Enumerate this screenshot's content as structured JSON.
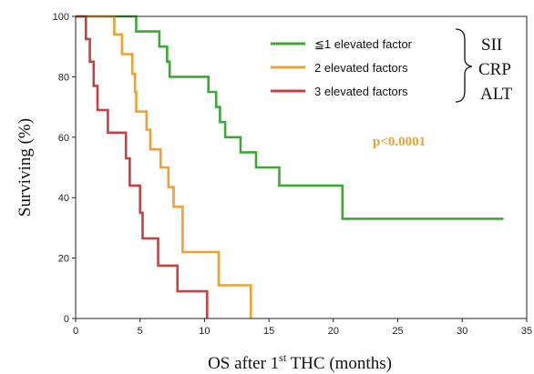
{
  "chart_data": {
    "type": "line",
    "step": true,
    "xlabel_main": "OS after 1",
    "xlabel_sup": "st",
    "xlabel_rest": " THC (months)",
    "ylabel": "Surviving (%)",
    "xlim": [
      0,
      35
    ],
    "ylim": [
      0,
      100
    ],
    "xticks": [
      "0",
      "5",
      "10",
      "15",
      "20",
      "25",
      "30",
      "35"
    ],
    "yticks": [
      "0",
      "20",
      "40",
      "60",
      "80",
      "100"
    ],
    "grid": false,
    "legend_position": "top-right",
    "series": [
      {
        "name": "≦1 elevated factor",
        "color": "#3aaa35",
        "points": [
          [
            0,
            100
          ],
          [
            4.7,
            100
          ],
          [
            4.7,
            95
          ],
          [
            6.5,
            95
          ],
          [
            6.5,
            90
          ],
          [
            7.1,
            90
          ],
          [
            7.1,
            85
          ],
          [
            7.3,
            85
          ],
          [
            7.3,
            80
          ],
          [
            10.3,
            80
          ],
          [
            10.3,
            75
          ],
          [
            10.9,
            75
          ],
          [
            10.9,
            70
          ],
          [
            11.2,
            70
          ],
          [
            11.2,
            65
          ],
          [
            11.6,
            65
          ],
          [
            11.6,
            60
          ],
          [
            12.8,
            60
          ],
          [
            12.8,
            55
          ],
          [
            14.0,
            55
          ],
          [
            14.0,
            50
          ],
          [
            15.8,
            50
          ],
          [
            15.8,
            44
          ],
          [
            20.7,
            44
          ],
          [
            20.7,
            33
          ],
          [
            33.2,
            33
          ]
        ]
      },
      {
        "name": "2 elevated factors",
        "color": "#f0a030",
        "points": [
          [
            0,
            100
          ],
          [
            3.0,
            100
          ],
          [
            3.0,
            94
          ],
          [
            3.6,
            94
          ],
          [
            3.6,
            87.5
          ],
          [
            4.4,
            87.5
          ],
          [
            4.4,
            81
          ],
          [
            4.6,
            81
          ],
          [
            4.6,
            75
          ],
          [
            4.7,
            75
          ],
          [
            4.7,
            68.5
          ],
          [
            5.5,
            68.5
          ],
          [
            5.5,
            62.5
          ],
          [
            5.8,
            62.5
          ],
          [
            5.8,
            56
          ],
          [
            6.6,
            56
          ],
          [
            6.6,
            50
          ],
          [
            7.2,
            50
          ],
          [
            7.2,
            43.5
          ],
          [
            7.6,
            43.5
          ],
          [
            7.6,
            37
          ],
          [
            8.3,
            37
          ],
          [
            8.3,
            22
          ],
          [
            11.1,
            22
          ],
          [
            11.1,
            11
          ],
          [
            13.6,
            11
          ],
          [
            13.6,
            0
          ]
        ]
      },
      {
        "name": "3 elevated factors",
        "color": "#c84040",
        "points": [
          [
            0,
            100
          ],
          [
            0.8,
            100
          ],
          [
            0.8,
            92.5
          ],
          [
            1.1,
            92.5
          ],
          [
            1.1,
            85
          ],
          [
            1.4,
            85
          ],
          [
            1.4,
            77
          ],
          [
            1.7,
            77
          ],
          [
            1.7,
            69
          ],
          [
            2.5,
            69
          ],
          [
            2.5,
            61.5
          ],
          [
            3.9,
            61.5
          ],
          [
            3.9,
            53
          ],
          [
            4.2,
            53
          ],
          [
            4.2,
            44
          ],
          [
            5.0,
            44
          ],
          [
            5.0,
            35
          ],
          [
            5.2,
            35
          ],
          [
            5.2,
            26.5
          ],
          [
            6.4,
            26.5
          ],
          [
            6.4,
            17.5
          ],
          [
            7.9,
            17.5
          ],
          [
            7.9,
            9
          ],
          [
            10.2,
            9
          ],
          [
            10.2,
            0
          ]
        ]
      }
    ],
    "bracket_labels": [
      "SII",
      "CRP",
      "ALT"
    ],
    "annotation": {
      "text": "p<0.0001",
      "color": "#f0a030"
    }
  }
}
